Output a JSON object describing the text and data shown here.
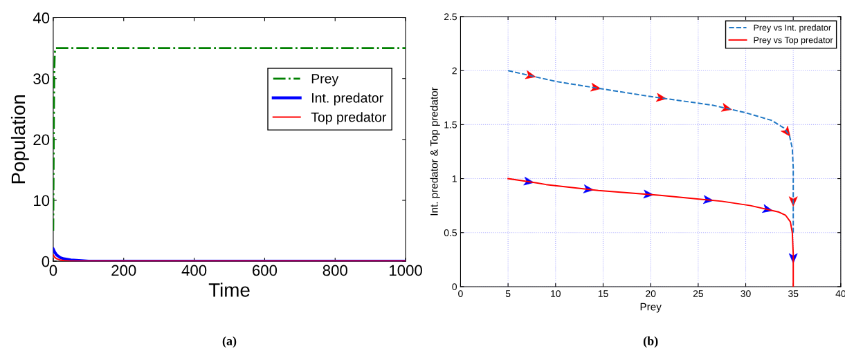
{
  "chart_data": [
    {
      "type": "line",
      "xlabel": "Time",
      "ylabel": "Population",
      "xlim": [
        0,
        1000
      ],
      "ylim": [
        0,
        40
      ],
      "xticks": [
        0,
        200,
        400,
        600,
        800,
        1000
      ],
      "yticks": [
        0,
        10,
        20,
        30,
        40
      ],
      "grid": false,
      "legend": "top right",
      "annotations": [
        "(a)"
      ],
      "series": [
        {
          "name": "Prey",
          "color": "#008000",
          "line_style": "dashdot",
          "x": [
            0,
            1,
            2,
            3,
            4,
            5,
            7,
            10,
            1000
          ],
          "values": [
            5,
            15,
            25,
            31,
            33.5,
            34.5,
            35,
            35,
            35
          ]
        },
        {
          "name": "Int. predator",
          "color": "#0000ff",
          "line_style": "solid",
          "x": [
            0,
            5,
            10,
            20,
            30,
            50,
            80,
            100,
            1000
          ],
          "values": [
            2,
            1.4,
            1.0,
            0.6,
            0.4,
            0.2,
            0.1,
            0,
            0
          ]
        },
        {
          "name": "Top predator",
          "color": "#ff0000",
          "line_style": "solid",
          "x": [
            0,
            5,
            10,
            20,
            30,
            50,
            80,
            100,
            1000
          ],
          "values": [
            1,
            0.6,
            0.4,
            0.2,
            0.1,
            0,
            0,
            0,
            0
          ]
        }
      ]
    },
    {
      "type": "line",
      "xlabel": "Prey",
      "ylabel": "Int. predator & Top predator",
      "xlim": [
        0,
        40
      ],
      "ylim": [
        0,
        2.5
      ],
      "xticks": [
        0,
        5,
        10,
        15,
        20,
        25,
        30,
        35,
        40
      ],
      "yticks": [
        0,
        0.5,
        1,
        1.5,
        2,
        2.5
      ],
      "grid": true,
      "legend": "top right",
      "annotations": [
        "(b)"
      ],
      "series": [
        {
          "name": "Prey vs Int. predator",
          "color": "#1f77c4",
          "line_style": "dashed",
          "x": [
            5,
            7.5,
            10,
            13.5,
            20,
            26.5,
            30,
            32.7,
            34,
            34.6,
            34.9,
            35,
            35,
            35
          ],
          "values": [
            2,
            1.95,
            1.9,
            1.85,
            1.76,
            1.68,
            1.61,
            1.54,
            1.47,
            1.4,
            1.28,
            1.1,
            0.7,
            0.5
          ]
        },
        {
          "name": "Prey vs Top predator",
          "color": "#ff0000",
          "line_style": "solid",
          "x": [
            5,
            8,
            9,
            14.5,
            21,
            27.5,
            30.5,
            33.5,
            34.2,
            34.7,
            34.9,
            35,
            35
          ],
          "values": [
            1,
            0.96,
            0.945,
            0.89,
            0.845,
            0.79,
            0.75,
            0.69,
            0.66,
            0.6,
            0.5,
            0.3,
            0
          ]
        }
      ]
    }
  ]
}
